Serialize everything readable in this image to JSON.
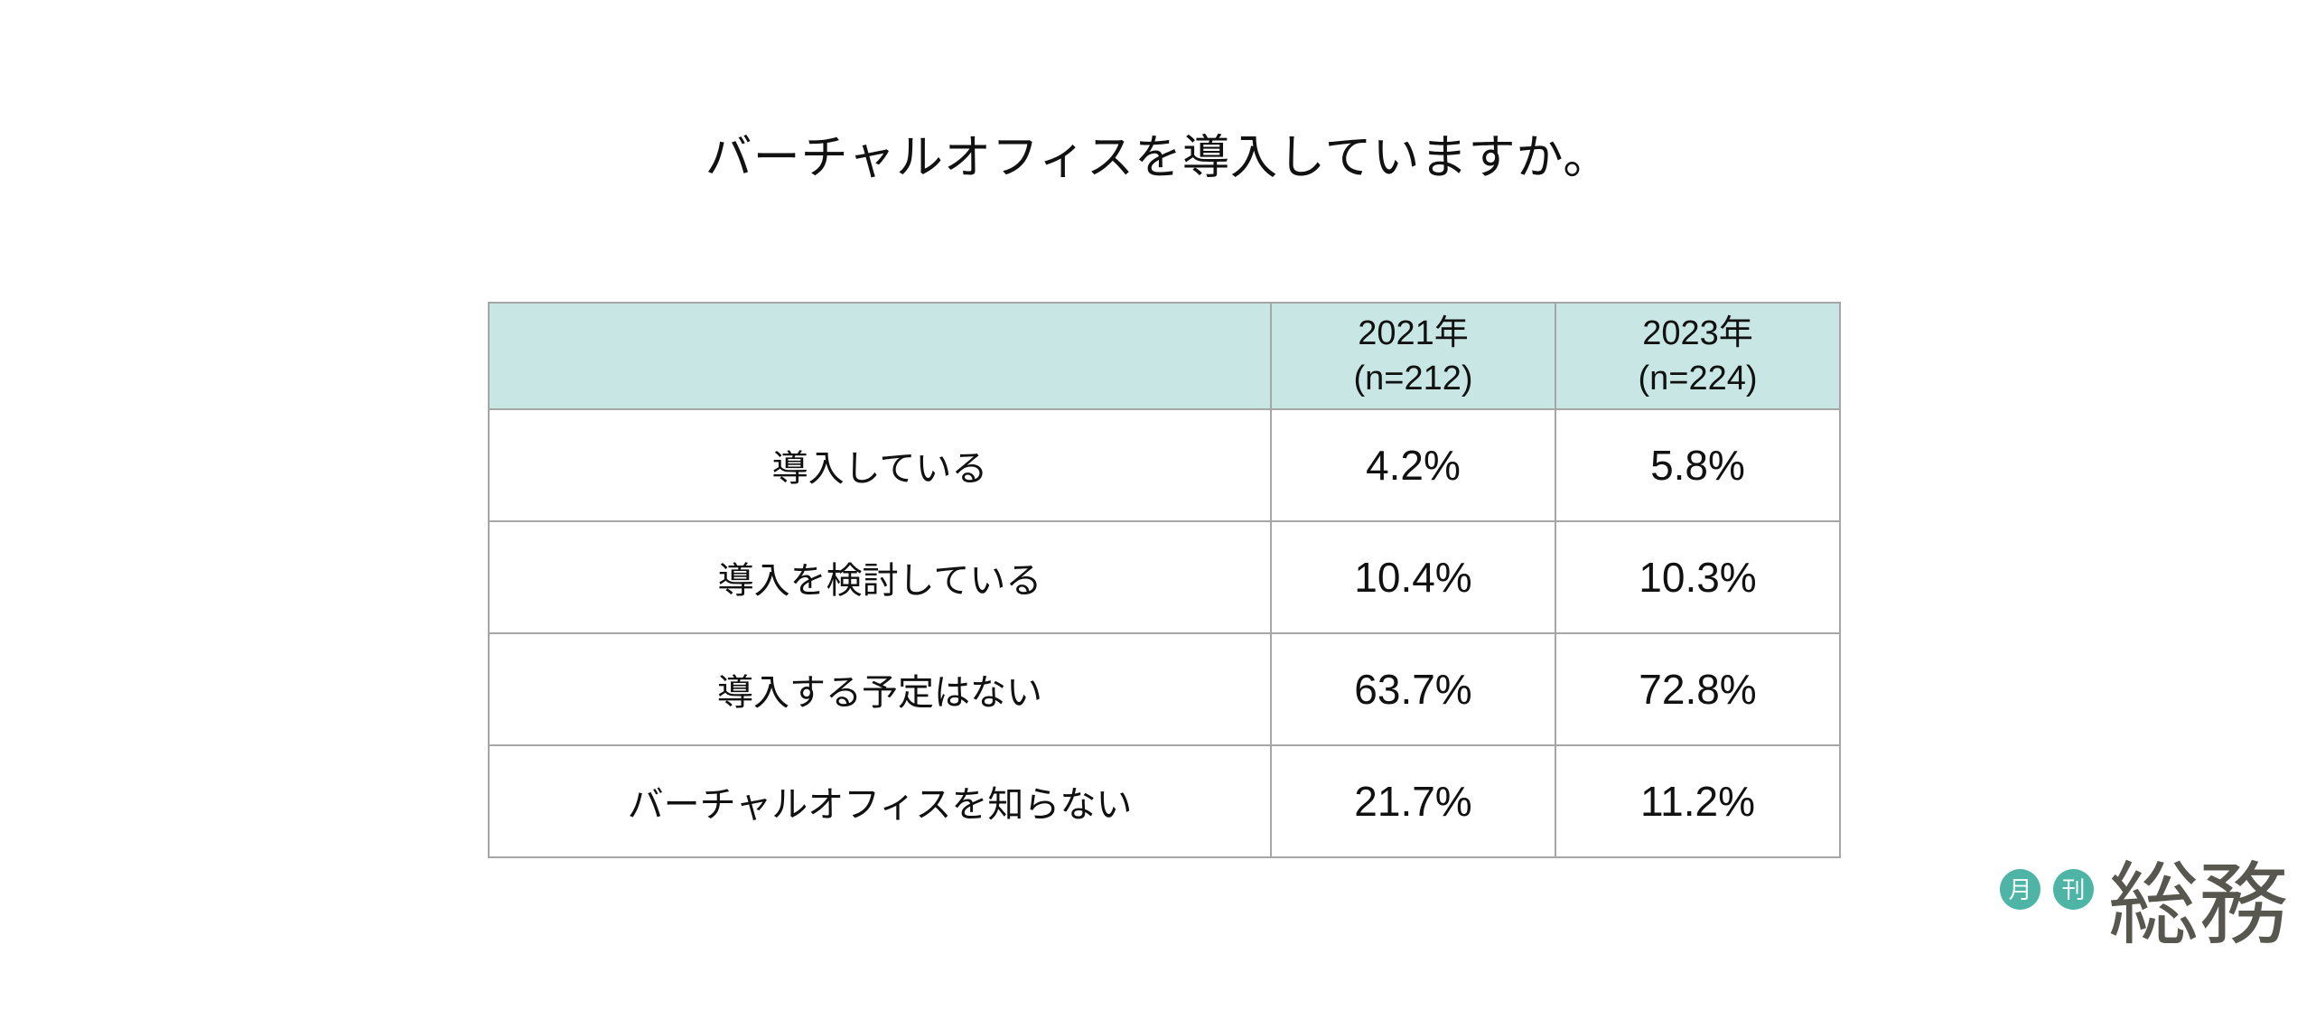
{
  "title": "バーチャルオフィスを導入していますか。",
  "table": {
    "corner": "",
    "columns": [
      {
        "year": "2021年",
        "n": "(n=212)"
      },
      {
        "year": "2023年",
        "n": "(n=224)"
      }
    ],
    "rows": [
      {
        "label": "導入している",
        "values": [
          "4.2%",
          "5.8%"
        ]
      },
      {
        "label": "導入を検討している",
        "values": [
          "10.4%",
          "10.3%"
        ]
      },
      {
        "label": "導入する予定はない",
        "values": [
          "63.7%",
          "72.8%"
        ]
      },
      {
        "label": "バーチャルオフィスを知らない",
        "values": [
          "21.7%",
          "11.2%"
        ]
      }
    ]
  },
  "logo": {
    "badges": [
      "月",
      "刊"
    ],
    "wordmark": "総務"
  },
  "colors": {
    "header_bg": "#c8e7e4",
    "border": "#a6a6a6",
    "badge_teal": "#4db4a6",
    "wordmark_gray": "#57574f",
    "text": "#111111",
    "bg": "#ffffff"
  },
  "chart_data": {
    "type": "table",
    "title": "バーチャルオフィスを導入していますか。",
    "categories": [
      "導入している",
      "導入を検討している",
      "導入する予定はない",
      "バーチャルオフィスを知らない"
    ],
    "series": [
      {
        "name": "2021年 (n=212)",
        "values": [
          4.2,
          10.4,
          63.7,
          21.7
        ]
      },
      {
        "name": "2023年 (n=224)",
        "values": [
          5.8,
          10.3,
          72.8,
          11.2
        ]
      }
    ],
    "unit": "%",
    "legend_position": "column-headers",
    "grid": true
  }
}
